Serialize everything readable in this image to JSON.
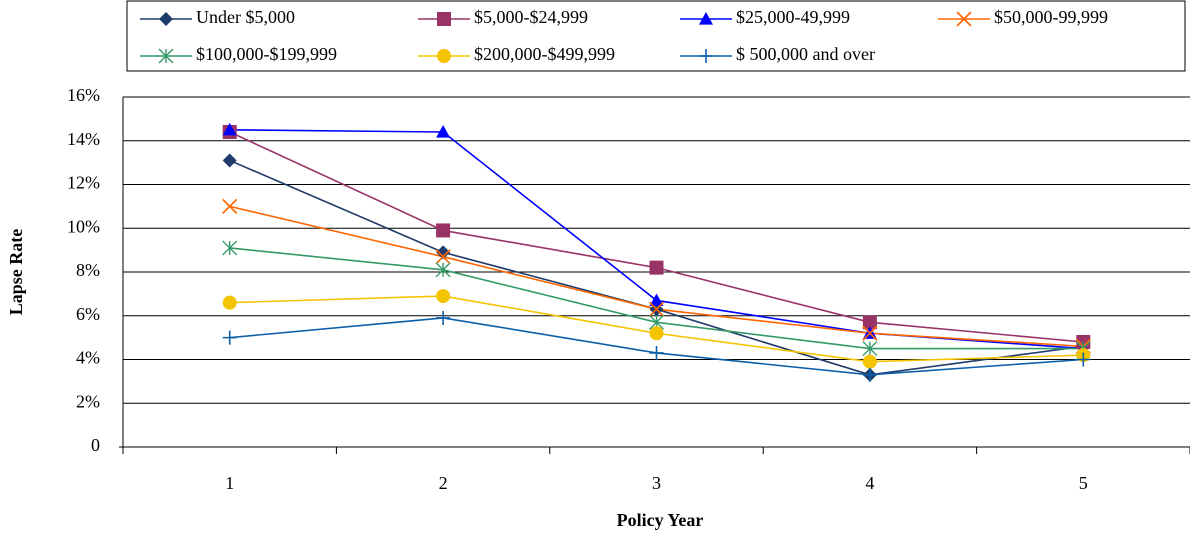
{
  "chart_data": {
    "type": "line",
    "x_label": "Policy Year",
    "y_label": "Lapse Rate",
    "categories": [
      "1",
      "2",
      "3",
      "4",
      "5"
    ],
    "ylim": [
      0,
      16
    ],
    "yticks": [
      0,
      {
        "value": 2,
        "label": "2%"
      },
      {
        "value": 4,
        "label": "4%"
      },
      {
        "value": 6,
        "label": "6%"
      },
      {
        "value": 8,
        "label": "8%"
      },
      {
        "value": 10,
        "label": "10%"
      },
      {
        "value": 12,
        "label": "12%"
      },
      {
        "value": 14,
        "label": "14%"
      },
      {
        "value": 16,
        "label": "16%"
      }
    ],
    "grid": true,
    "legend": "top",
    "series": [
      {
        "name": "Under $5,000",
        "color": "#1f3b6a",
        "marker": "diamond",
        "values": [
          13.1,
          8.9,
          6.3,
          3.3,
          4.6
        ]
      },
      {
        "name": "$5,000-$24,999",
        "color": "#993366",
        "marker": "square",
        "values": [
          14.4,
          9.9,
          8.2,
          5.7,
          4.8
        ]
      },
      {
        "name": "$25,000-49,999",
        "color": "#0000ff",
        "marker": "triangle",
        "values": [
          14.5,
          14.4,
          6.7,
          5.2,
          4.5
        ]
      },
      {
        "name": "$50,000-99,999",
        "color": "#ff6600",
        "marker": "x",
        "values": [
          11.0,
          8.7,
          6.3,
          5.2,
          4.6
        ]
      },
      {
        "name": "$100,000-$199,999",
        "color": "#339966",
        "marker": "star",
        "values": [
          9.1,
          8.1,
          5.7,
          4.5,
          4.5
        ]
      },
      {
        "name": "$200,000-$499,999",
        "color": "#f5c400",
        "marker": "circle",
        "values": [
          6.6,
          6.9,
          5.2,
          3.9,
          4.2
        ]
      },
      {
        "name": "$ 500,000 and over",
        "color": "#0b5fa8",
        "marker": "plus",
        "values": [
          5.0,
          5.9,
          4.3,
          3.3,
          4.0
        ]
      }
    ]
  }
}
